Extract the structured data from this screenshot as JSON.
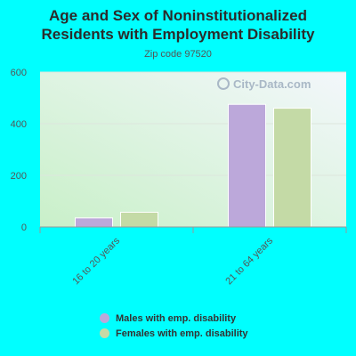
{
  "title_line1": "Age and Sex of Noninstitutionalized",
  "title_line2": "Residents with Employment Disability",
  "subtitle": "Zip code 97520",
  "watermark": "City-Data.com",
  "chart_data": {
    "type": "bar",
    "categories": [
      "16 to 20 years",
      "21 to 64 years"
    ],
    "series": [
      {
        "name": "Males with emp. disability",
        "values": [
          35,
          475
        ],
        "color": "#bca8da"
      },
      {
        "name": "Females with emp. disability",
        "values": [
          57,
          460
        ],
        "color": "#c4daa6"
      }
    ],
    "ylim": [
      0,
      600
    ],
    "yticks": [
      "0",
      "200",
      "400",
      "600"
    ],
    "grid": true,
    "legend_position": "bottom"
  }
}
